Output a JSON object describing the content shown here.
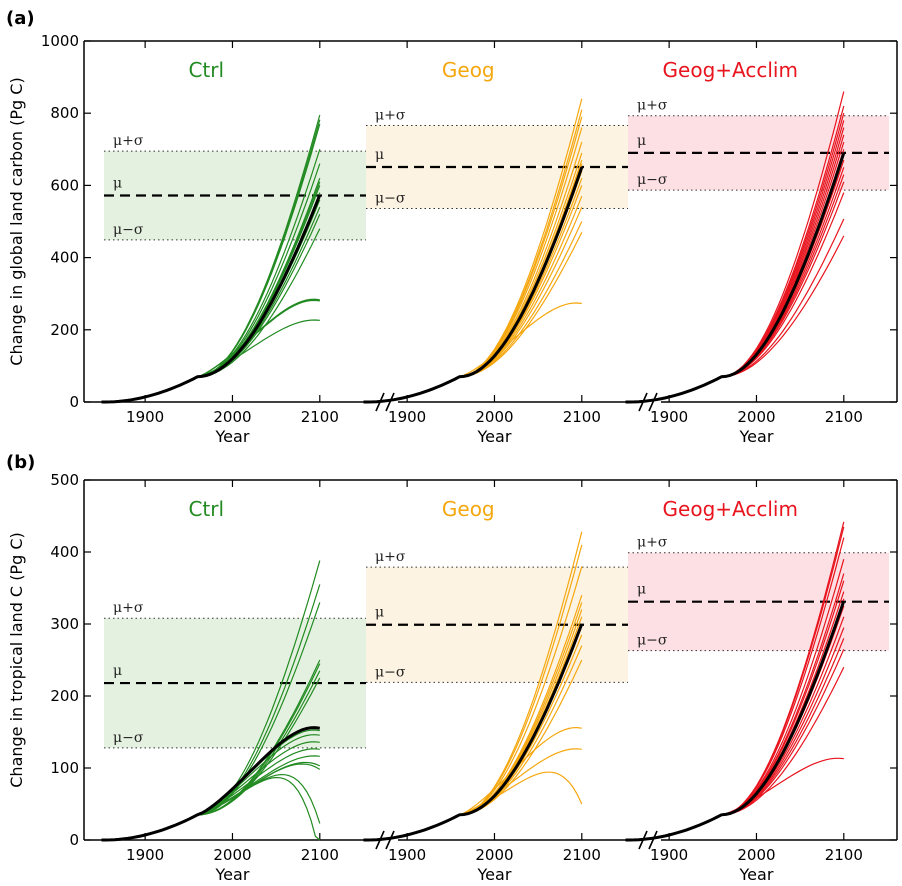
{
  "figure": {
    "panels": [
      {
        "label": "(a)",
        "ylabel": "Change in global land carbon (Pg C)",
        "ylim": [
          0,
          1000
        ],
        "yticks": [
          0,
          200,
          400,
          600,
          800,
          1000
        ],
        "xlabel": "Year",
        "xticks": [
          1900,
          2000,
          2100
        ],
        "stat_labels": {
          "plus": "μ+σ",
          "mean": "μ",
          "minus": "μ−σ"
        },
        "groups": [
          {
            "title": "Ctrl",
            "color": "#228b22",
            "fill": "#e5f1e0",
            "mu": 572,
            "sigma": 123,
            "mean_end": 573,
            "endpoints": [
              310,
              393,
              396,
              398,
              480,
              520,
              540,
              560,
              580,
              600,
              610,
              620,
              660,
              700,
              770,
              782,
              795
            ]
          },
          {
            "title": "Geog",
            "color": "#f5a70e",
            "fill": "#fdf3e2",
            "mu": 651,
            "sigma": 115,
            "mean_end": 650,
            "endpoints": [
              382,
              470,
              500,
              540,
              570,
              600,
              620,
              640,
              660,
              670,
              690,
              720,
              760,
              790,
              810,
              840
            ]
          },
          {
            "title": "Geog+Acclim",
            "color": "#e8141e",
            "fill": "#fde0e4",
            "mu": 690,
            "sigma": 103,
            "mean_end": 690,
            "endpoints": [
              460,
              507,
              580,
              610,
              630,
              650,
              670,
              690,
              700,
              720,
              740,
              760,
              780,
              800,
              820,
              860
            ]
          }
        ]
      },
      {
        "label": "(b)",
        "ylabel": "Change in tropical land C (Pg C)",
        "ylim": [
          0,
          500
        ],
        "yticks": [
          0,
          100,
          200,
          300,
          400,
          500
        ],
        "xlabel": "Year",
        "xticks": [
          1900,
          2000,
          2100
        ],
        "stat_labels": {
          "plus": "μ+σ",
          "mean": "μ",
          "minus": "μ−σ"
        },
        "groups": [
          {
            "title": "Ctrl",
            "color": "#228b22",
            "fill": "#e5f1e0",
            "mu": 218,
            "sigma": 90,
            "mean_end": 220,
            "endpoints": [
              20,
              65,
              140,
              145,
              160,
              175,
              190,
              205,
              215,
              225,
              235,
              245,
              250,
              330,
              355,
              388
            ]
          },
          {
            "title": "Geog",
            "color": "#f5a70e",
            "fill": "#fdf3e2",
            "mu": 299,
            "sigma": 80,
            "mean_end": 300,
            "endpoints": [
              92,
              175,
              220,
              250,
              270,
              285,
              300,
              310,
              320,
              330,
              340,
              380,
              410,
              428
            ]
          },
          {
            "title": "Geog+Acclim",
            "color": "#e8141e",
            "fill": "#fde0e4",
            "mu": 331,
            "sigma": 68,
            "mean_end": 332,
            "endpoints": [
              155,
              240,
              265,
              280,
              295,
              310,
              325,
              335,
              345,
              360,
              370,
              390,
              420,
              435,
              442
            ]
          }
        ]
      }
    ]
  }
}
